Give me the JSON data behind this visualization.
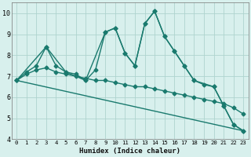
{
  "xlabel": "Humidex (Indice chaleur)",
  "bg_color": "#d8f0ed",
  "grid_color": "#afd4ce",
  "line_color": "#1a7a6e",
  "xlim": [
    -0.5,
    23.5
  ],
  "ylim": [
    4,
    10.5
  ],
  "yticks": [
    4,
    5,
    6,
    7,
    8,
    9,
    10
  ],
  "xticks": [
    0,
    1,
    2,
    3,
    4,
    5,
    6,
    7,
    8,
    9,
    10,
    11,
    12,
    13,
    14,
    15,
    16,
    17,
    18,
    19,
    20,
    21,
    22,
    23
  ],
  "series": [
    {
      "x": [
        0,
        1,
        2,
        3,
        4,
        5,
        6,
        7,
        8,
        9,
        10,
        11,
        12,
        13,
        14,
        15,
        16,
        17,
        18,
        19,
        20,
        21,
        22,
        23
      ],
      "y": [
        6.8,
        7.2,
        7.5,
        8.4,
        7.5,
        7.2,
        7.1,
        6.8,
        7.3,
        9.1,
        9.3,
        8.1,
        7.5,
        9.5,
        10.1,
        8.9,
        8.2,
        7.5,
        6.8,
        6.6,
        6.5,
        5.6,
        4.7,
        4.4
      ],
      "marker": "D",
      "markersize": 2.5,
      "linewidth": 1.0
    },
    {
      "x": [
        0,
        3,
        5,
        7,
        9,
        10,
        11,
        12,
        13,
        14,
        15,
        16,
        17,
        18,
        20,
        21,
        22,
        23
      ],
      "y": [
        6.8,
        8.4,
        7.2,
        6.8,
        9.1,
        9.3,
        8.1,
        7.5,
        9.5,
        10.1,
        8.9,
        8.2,
        7.5,
        6.8,
        6.5,
        5.6,
        4.7,
        4.4
      ],
      "marker": "D",
      "markersize": 2.5,
      "linewidth": 1.0
    },
    {
      "x": [
        0,
        1,
        2,
        3,
        4,
        5,
        6,
        7,
        8,
        9,
        10,
        11,
        12,
        13,
        14,
        15,
        16,
        17,
        18,
        19,
        20,
        21,
        22,
        23
      ],
      "y": [
        6.8,
        7.1,
        7.3,
        7.4,
        7.2,
        7.1,
        7.0,
        6.9,
        6.8,
        6.8,
        6.7,
        6.6,
        6.5,
        6.5,
        6.4,
        6.3,
        6.2,
        6.1,
        6.0,
        5.9,
        5.8,
        5.7,
        5.5,
        5.2
      ],
      "marker": "D",
      "markersize": 2.5,
      "linewidth": 1.0
    },
    {
      "x": [
        0,
        23
      ],
      "y": [
        6.8,
        4.4
      ],
      "marker": null,
      "markersize": 0,
      "linewidth": 1.0
    }
  ]
}
